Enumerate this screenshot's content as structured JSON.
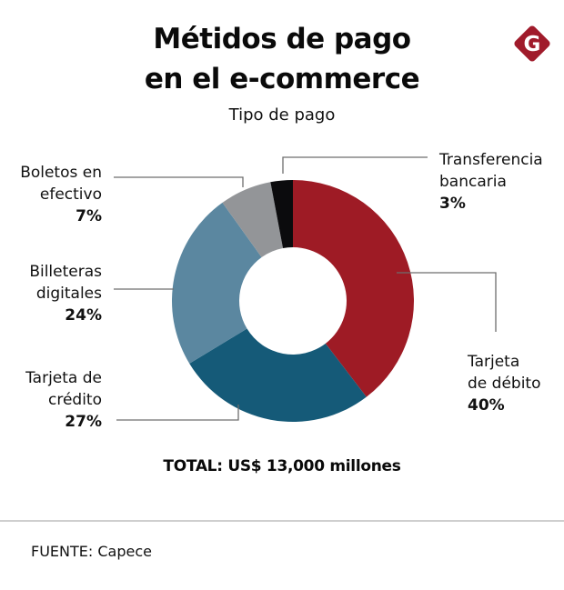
{
  "header": {
    "title_line1": "Métidos de pago",
    "title_line2": "en el e-commerce",
    "subtitle": "Tipo de pago",
    "logo_letter": "G",
    "logo_icon": "brand-g-diamond-icon"
  },
  "colors": {
    "debito": "#9e1b25",
    "credito": "#155a78",
    "billeteras": "#5b87a0",
    "boletos": "#939598",
    "transferencia": "#0b0b0d",
    "logo": "#a01b2b",
    "leader": "#6d6d6d"
  },
  "chart_data": {
    "type": "pie",
    "variant": "donut",
    "title": "Métidos de pago en el e-commerce",
    "subtitle": "Tipo de pago",
    "start": "top",
    "direction": "clockwise",
    "slices": [
      {
        "key": "debito",
        "label_lines": [
          "Tarjeta",
          "de débito"
        ],
        "label": "Tarjeta de débito",
        "value": 40,
        "value_label": "40%"
      },
      {
        "key": "credito",
        "label_lines": [
          "Tarjeta de",
          "crédito"
        ],
        "label": "Tarjeta de crédito",
        "value": 27,
        "value_label": "27%"
      },
      {
        "key": "billeteras",
        "label_lines": [
          "Billeteras",
          "digitales"
        ],
        "label": "Billeteras digitales",
        "value": 24,
        "value_label": "24%"
      },
      {
        "key": "boletos",
        "label_lines": [
          "Boletos en",
          "efectivo"
        ],
        "label": "Boletos en efectivo",
        "value": 7,
        "value_label": "7%"
      },
      {
        "key": "transferencia",
        "label_lines": [
          "Transferencia",
          "bancaria"
        ],
        "label": "Transferencia bancaria",
        "value": 3,
        "value_label": "3%"
      }
    ],
    "total_label": "TOTAL: US$ 13,000 millones"
  },
  "footer": {
    "source": "FUENTE: Capece"
  }
}
